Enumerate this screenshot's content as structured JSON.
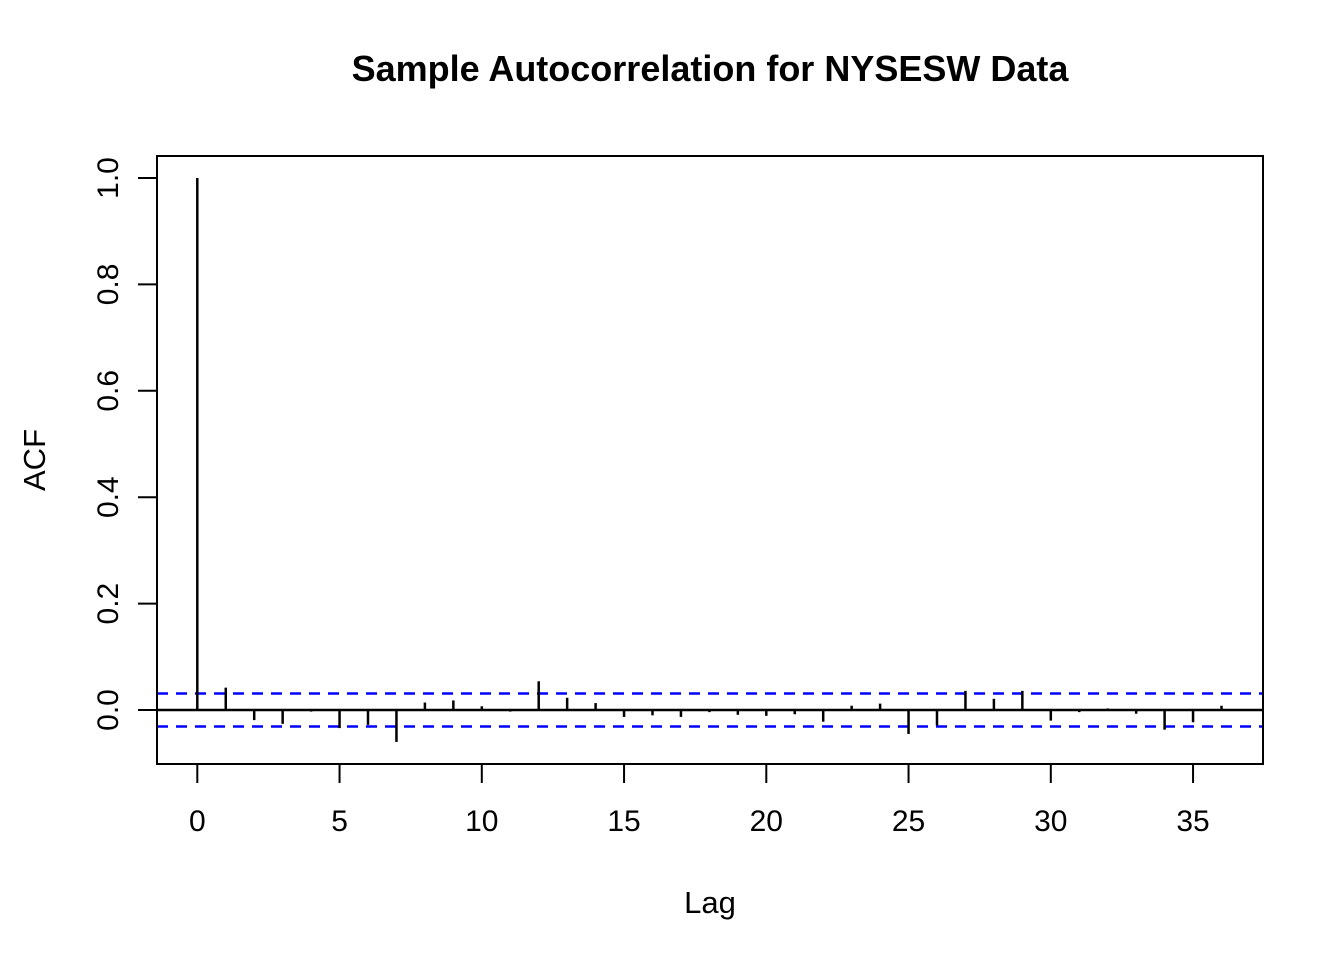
{
  "chart_data": {
    "type": "bar",
    "subtype": "acf-stem-plot",
    "title": "Sample Autocorrelation for NYSESW Data",
    "xlabel": "Lag",
    "ylabel": "ACF",
    "x_tick_values": [
      0,
      5,
      10,
      15,
      20,
      25,
      30,
      35
    ],
    "y_tick_values": [
      0.0,
      0.2,
      0.4,
      0.6,
      0.8,
      1.0
    ],
    "y_tick_labels": [
      "0.0",
      "0.2",
      "0.4",
      "0.6",
      "0.8",
      "1.0"
    ],
    "xlim": [
      -1.44,
      37.44
    ],
    "ylim": [
      -0.1015,
      1.0414
    ],
    "grid": "off",
    "legend": "none",
    "confidence_band": 0.031,
    "band_style": "dashed",
    "band_color": "#0000FF",
    "line_color": "#000000",
    "background_color": "#FFFFFF",
    "lags": [
      0,
      1,
      2,
      3,
      4,
      5,
      6,
      7,
      8,
      9,
      10,
      11,
      12,
      13,
      14,
      15,
      16,
      17,
      18,
      19,
      20,
      21,
      22,
      23,
      24,
      25,
      26,
      27,
      28,
      29,
      30,
      31,
      32,
      33,
      34,
      35,
      36
    ],
    "acf_values": [
      1.0,
      0.042,
      -0.019,
      -0.026,
      -0.003,
      -0.034,
      -0.028,
      -0.06,
      0.014,
      0.018,
      0.007,
      -0.003,
      0.054,
      0.023,
      0.013,
      -0.013,
      -0.01,
      -0.013,
      -0.004,
      -0.009,
      -0.011,
      -0.008,
      -0.022,
      0.008,
      0.012,
      -0.045,
      -0.029,
      0.036,
      0.021,
      0.036,
      -0.02,
      -0.004,
      0.003,
      -0.007,
      -0.037,
      -0.023,
      0.008
    ]
  }
}
